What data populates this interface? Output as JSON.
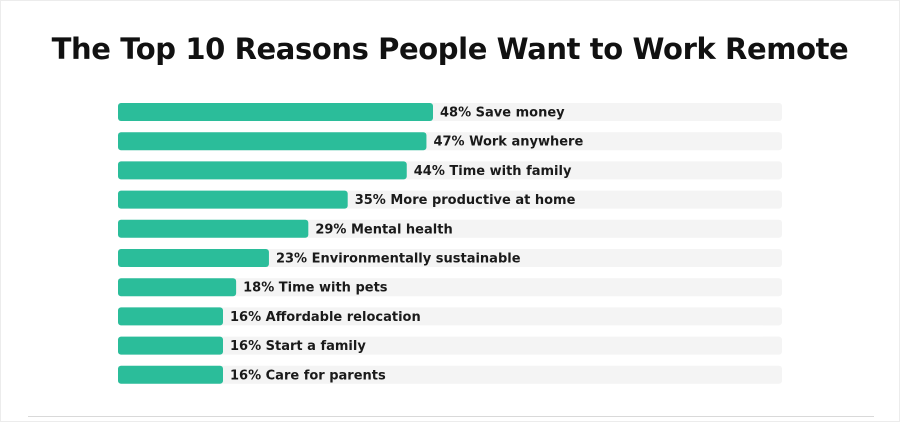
{
  "chart_data": {
    "type": "bar",
    "orientation": "horizontal",
    "title": "The Top 10 Reasons People Want to Work Remote",
    "unit": "%",
    "xlim": [
      0,
      100
    ],
    "bar_color": "#2bbd9a",
    "track_color": "#f4f4f4",
    "grid": false,
    "legend": "none",
    "items": [
      {
        "value": 48,
        "category": "Save money",
        "label": "48% Save money"
      },
      {
        "value": 47,
        "category": "Work anywhere",
        "label": "47% Work anywhere"
      },
      {
        "value": 44,
        "category": "Time with family",
        "label": "44% Time with family"
      },
      {
        "value": 35,
        "category": "More productive at home",
        "label": "35% More productive at home"
      },
      {
        "value": 29,
        "category": "Mental health",
        "label": "29% Mental health"
      },
      {
        "value": 23,
        "category": "Environmentally sustainable",
        "label": "23% Environmentally sustainable"
      },
      {
        "value": 18,
        "category": "Time with pets",
        "label": "18% Time with pets"
      },
      {
        "value": 16,
        "category": "Affordable relocation",
        "label": "16% Affordable relocation"
      },
      {
        "value": 16,
        "category": "Start a family",
        "label": "16% Start a family"
      },
      {
        "value": 16,
        "category": "Care for parents",
        "label": "16% Care for parents"
      }
    ]
  }
}
